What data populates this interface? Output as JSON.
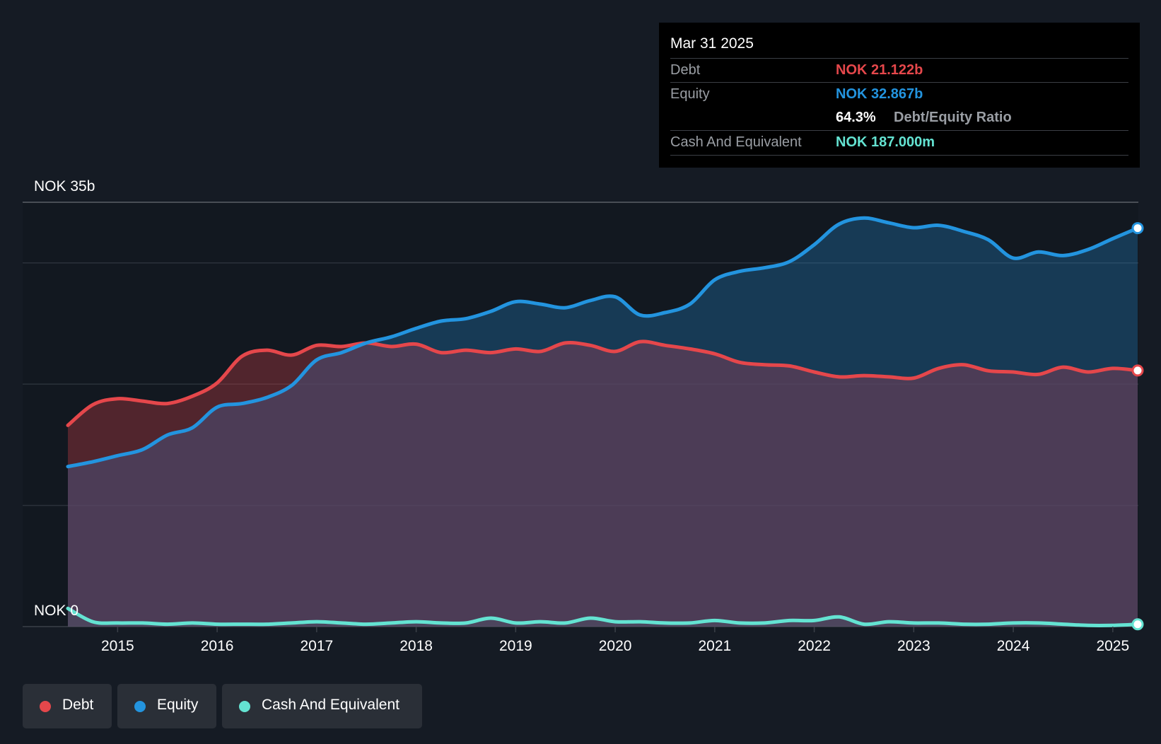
{
  "chart_data": {
    "type": "area",
    "title": "",
    "y_unit_label_top": "NOK 35b",
    "y_unit_label_bottom": "NOK 0",
    "ylim": [
      0,
      35
    ],
    "xlim": [
      2014.5,
      2025.25
    ],
    "x_ticks": [
      "2015",
      "2016",
      "2017",
      "2018",
      "2019",
      "2020",
      "2021",
      "2022",
      "2023",
      "2024",
      "2025"
    ],
    "series": [
      {
        "name": "Debt",
        "color": "#e5474b",
        "x": [
          2014.5,
          2014.75,
          2015.0,
          2015.25,
          2015.5,
          2015.75,
          2016.0,
          2016.25,
          2016.5,
          2016.75,
          2017.0,
          2017.25,
          2017.5,
          2017.75,
          2018.0,
          2018.25,
          2018.5,
          2018.75,
          2019.0,
          2019.25,
          2019.5,
          2019.75,
          2020.0,
          2020.25,
          2020.5,
          2020.75,
          2021.0,
          2021.25,
          2021.5,
          2021.75,
          2022.0,
          2022.25,
          2022.5,
          2022.75,
          2023.0,
          2023.25,
          2023.5,
          2023.75,
          2024.0,
          2024.25,
          2024.5,
          2024.75,
          2025.0,
          2025.25
        ],
        "values": [
          16.6,
          18.3,
          18.8,
          18.6,
          18.4,
          19.0,
          20.1,
          22.3,
          22.8,
          22.4,
          23.2,
          23.1,
          23.4,
          23.1,
          23.3,
          22.6,
          22.8,
          22.6,
          22.9,
          22.7,
          23.4,
          23.2,
          22.7,
          23.5,
          23.2,
          22.9,
          22.5,
          21.8,
          21.6,
          21.5,
          21.0,
          20.6,
          20.7,
          20.6,
          20.5,
          21.3,
          21.6,
          21.1,
          21.0,
          20.8,
          21.4,
          21.0,
          21.3,
          21.122
        ]
      },
      {
        "name": "Equity",
        "color": "#2394df",
        "x": [
          2014.5,
          2014.75,
          2015.0,
          2015.25,
          2015.5,
          2015.75,
          2016.0,
          2016.25,
          2016.5,
          2016.75,
          2017.0,
          2017.25,
          2017.5,
          2017.75,
          2018.0,
          2018.25,
          2018.5,
          2018.75,
          2019.0,
          2019.25,
          2019.5,
          2019.75,
          2020.0,
          2020.25,
          2020.5,
          2020.75,
          2021.0,
          2021.25,
          2021.5,
          2021.75,
          2022.0,
          2022.25,
          2022.5,
          2022.75,
          2023.0,
          2023.25,
          2023.5,
          2023.75,
          2024.0,
          2024.25,
          2024.5,
          2024.75,
          2025.0,
          2025.25
        ],
        "values": [
          13.2,
          13.6,
          14.1,
          14.6,
          15.8,
          16.4,
          18.1,
          18.4,
          18.9,
          19.9,
          22.0,
          22.6,
          23.4,
          23.9,
          24.6,
          25.2,
          25.4,
          26.0,
          26.8,
          26.6,
          26.3,
          26.9,
          27.2,
          25.7,
          25.9,
          26.6,
          28.6,
          29.3,
          29.6,
          30.1,
          31.5,
          33.2,
          33.7,
          33.3,
          32.9,
          33.1,
          32.6,
          31.9,
          30.4,
          30.9,
          30.6,
          31.1,
          32.0,
          32.867
        ]
      },
      {
        "name": "Cash And Equivalent",
        "color": "#64e3d2",
        "x": [
          2014.5,
          2014.75,
          2015.0,
          2015.25,
          2015.5,
          2015.75,
          2016.0,
          2016.25,
          2016.5,
          2016.75,
          2017.0,
          2017.25,
          2017.5,
          2017.75,
          2018.0,
          2018.25,
          2018.5,
          2018.75,
          2019.0,
          2019.25,
          2019.5,
          2019.75,
          2020.0,
          2020.25,
          2020.5,
          2020.75,
          2021.0,
          2021.25,
          2021.5,
          2021.75,
          2022.0,
          2022.25,
          2022.5,
          2022.75,
          2023.0,
          2023.25,
          2023.5,
          2023.75,
          2024.0,
          2024.25,
          2024.5,
          2024.75,
          2025.0,
          2025.25
        ],
        "values": [
          1.5,
          0.4,
          0.3,
          0.3,
          0.2,
          0.3,
          0.2,
          0.2,
          0.2,
          0.3,
          0.4,
          0.3,
          0.2,
          0.3,
          0.4,
          0.3,
          0.3,
          0.7,
          0.3,
          0.4,
          0.3,
          0.7,
          0.4,
          0.4,
          0.3,
          0.3,
          0.5,
          0.3,
          0.3,
          0.5,
          0.5,
          0.8,
          0.2,
          0.4,
          0.3,
          0.3,
          0.2,
          0.2,
          0.3,
          0.3,
          0.2,
          0.1,
          0.1,
          0.187
        ]
      }
    ],
    "tooltip": {
      "date": "Mar 31 2025",
      "debt_label": "Debt",
      "debt_value": "NOK 21.122b",
      "equity_label": "Equity",
      "equity_value": "NOK 32.867b",
      "ratio_value": "64.3%",
      "ratio_label": "Debt/Equity Ratio",
      "cash_label": "Cash And Equivalent",
      "cash_value": "NOK 187.000m"
    },
    "legend": [
      "Debt",
      "Equity",
      "Cash And Equivalent"
    ]
  },
  "colors": {
    "background": "#151b24",
    "debt": "#e5474b",
    "equity": "#2394df",
    "cash": "#64e3d2"
  }
}
